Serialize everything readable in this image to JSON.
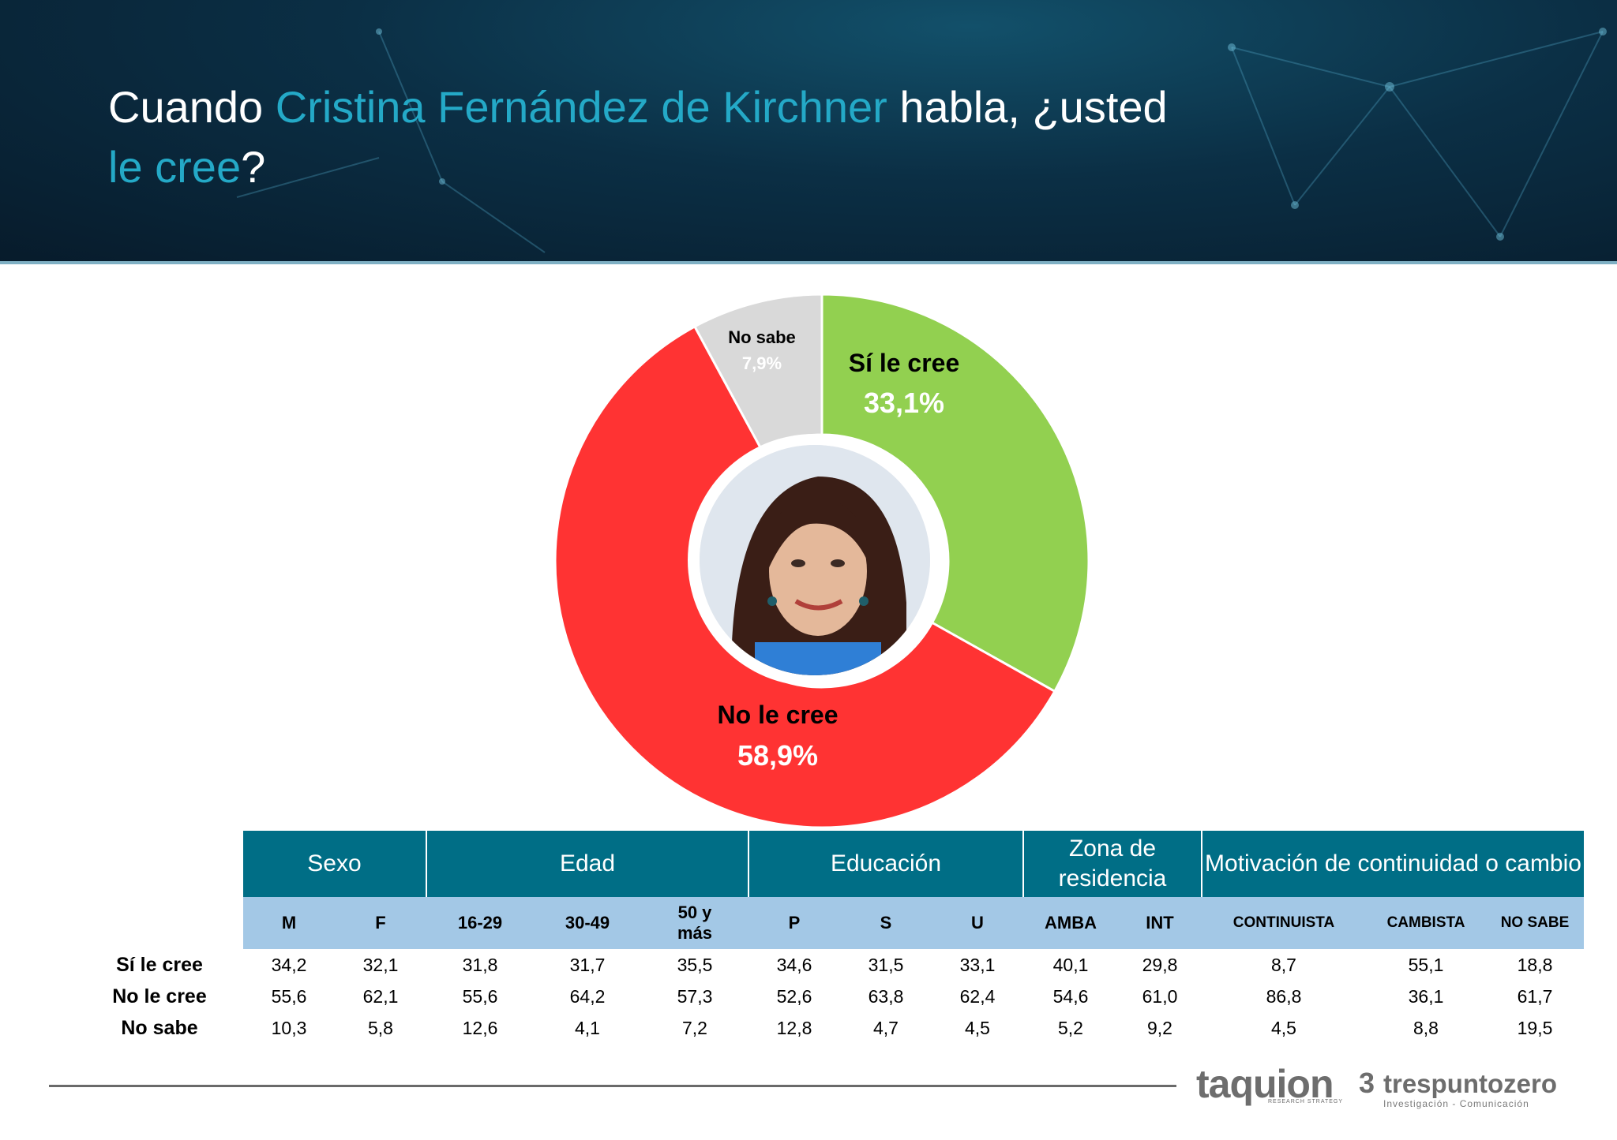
{
  "header": {
    "title_part1": "Cuando ",
    "title_highlight1": "Cristina Fernández de Kirchner",
    "title_part2": " habla, ¿usted",
    "title_highlight2": "le cree",
    "title_part3": "?"
  },
  "colors": {
    "si": "#92d050",
    "no": "#ff3333",
    "ns": "#d9d9d9",
    "highlight": "#24a9c7",
    "table_header": "#006e86",
    "table_subheader": "#a3c8e6"
  },
  "chart_data": {
    "type": "pie",
    "variant": "donut",
    "slices": [
      {
        "label": "Sí le cree",
        "value": 33.1,
        "display": "33,1%",
        "color": "#92d050"
      },
      {
        "label": "No le cree",
        "value": 58.9,
        "display": "58,9%",
        "color": "#ff3333"
      },
      {
        "label": "No sabe",
        "value": 7.9,
        "display": "7,9%",
        "color": "#d9d9d9"
      }
    ],
    "center_image": "portrait"
  },
  "table": {
    "groups": [
      "Sexo",
      "Edad",
      "Educación",
      "Zona de residencia",
      "Motivación de continuidad o cambio"
    ],
    "columns": [
      "M",
      "F",
      "16-29",
      "30-49",
      "50 y más",
      "P",
      "S",
      "U",
      "AMBA",
      "INT",
      "CONTINUISTA",
      "CAMBISTA",
      "NO SABE"
    ],
    "rows": [
      {
        "label": "Sí le cree",
        "values": [
          "34,2",
          "32,1",
          "31,8",
          "31,7",
          "35,5",
          "34,6",
          "31,5",
          "33,1",
          "40,1",
          "29,8",
          "8,7",
          "55,1",
          "18,8"
        ]
      },
      {
        "label": "No le cree",
        "values": [
          "55,6",
          "62,1",
          "55,6",
          "64,2",
          "57,3",
          "52,6",
          "63,8",
          "62,4",
          "54,6",
          "61,0",
          "86,8",
          "36,1",
          "61,7"
        ]
      },
      {
        "label": "No sabe",
        "values": [
          "10,3",
          "5,8",
          "12,6",
          "4,1",
          "7,2",
          "12,8",
          "4,7",
          "4,5",
          "5,2",
          "9,2",
          "4,5",
          "8,8",
          "19,5"
        ]
      }
    ]
  },
  "footer": {
    "logo1": "taquion",
    "logo1_sub": "RESEARCH STRATEGY",
    "logo2_mark": "3",
    "logo2": "trespuntozero",
    "logo2_sub": "Investigación - Comunicación"
  }
}
